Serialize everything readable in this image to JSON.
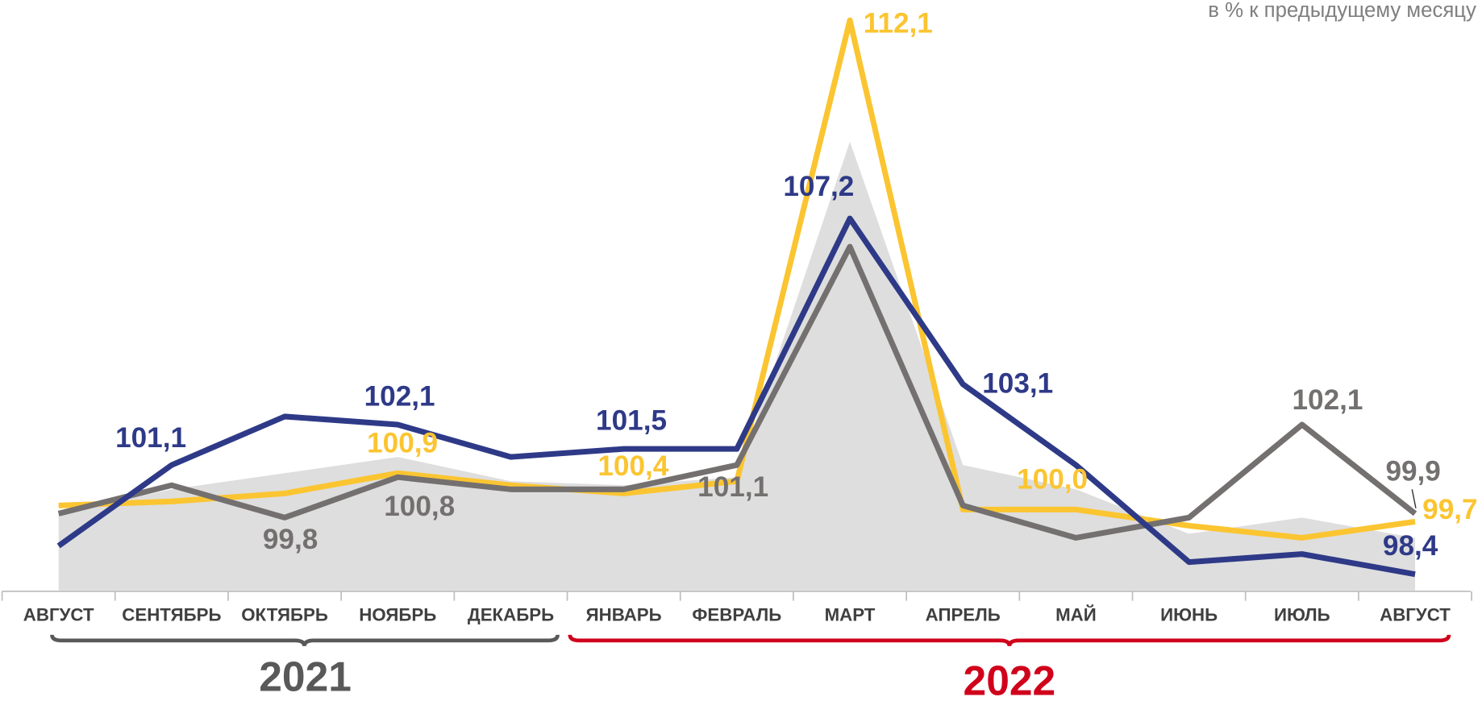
{
  "chart_data": {
    "type": "line",
    "subtitle": "в % к предыдущему месяцу",
    "categories": [
      "АВГУСТ",
      "СЕНТЯБРЬ",
      "ОКТЯБРЬ",
      "НОЯБРЬ",
      "ДЕКАБРЬ",
      "ЯНВАРЬ",
      "ФЕВРАЛЬ",
      "МАРТ",
      "АПРЕЛЬ",
      "МАЙ",
      "ИЮНЬ",
      "ИЮЛЬ",
      "АВГУСТ"
    ],
    "year_groups": [
      "2021",
      "2022"
    ],
    "ylim": [
      98,
      112.6
    ],
    "series": [
      {
        "kind": "area",
        "color": "#dedede",
        "values": [
          99.9,
          100.5,
          100.9,
          101.3,
          100.7,
          100.6,
          100.8,
          109.1,
          101.1,
          100.5,
          99.4,
          99.8,
          99.3
        ]
      },
      {
        "color": "#fbc531",
        "values": [
          100.1,
          100.2,
          100.4,
          100.9,
          100.6,
          100.4,
          100.7,
          112.1,
          100.0,
          100.0,
          99.6,
          99.3,
          99.7
        ],
        "value_labels": [
          null,
          null,
          null,
          "100,9",
          null,
          "100,4",
          null,
          "112,1",
          null,
          "100,0",
          null,
          null,
          "99,7"
        ]
      },
      {
        "color": "#747070",
        "values": [
          99.9,
          100.6,
          99.8,
          100.8,
          100.5,
          100.5,
          101.1,
          106.5,
          100.1,
          99.3,
          99.8,
          102.1,
          99.9
        ],
        "value_labels": [
          null,
          null,
          "99,8",
          "100,8",
          null,
          null,
          "101,1",
          null,
          null,
          null,
          null,
          "102,1",
          "99,9"
        ]
      },
      {
        "color": "#2e3a87",
        "values": [
          99.1,
          101.1,
          102.3,
          102.1,
          101.3,
          101.5,
          101.5,
          107.2,
          103.1,
          101.1,
          98.7,
          98.9,
          98.4
        ],
        "value_labels": [
          null,
          "101,1",
          null,
          "102,1",
          null,
          "101,5",
          null,
          "107,2",
          "103,1",
          null,
          null,
          null,
          "98,4"
        ]
      }
    ]
  }
}
